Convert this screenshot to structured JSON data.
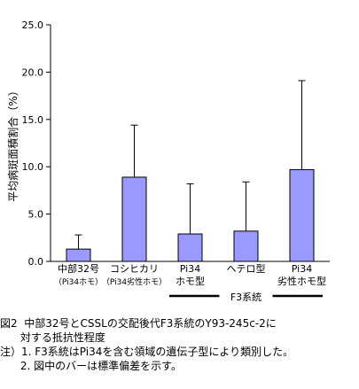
{
  "chart_data": {
    "type": "bar",
    "ylabel": "平均病斑面積割合（%）",
    "ylim": [
      0,
      25
    ],
    "yticks": [
      "0.0",
      "5.0",
      "10.0",
      "15.0",
      "20.0",
      "25.0"
    ],
    "bar_color": "#9999ff",
    "categories": [
      {
        "line1": "中部32号",
        "line2": "（Pi34ホモ）"
      },
      {
        "line1": "コシヒカリ",
        "line2": "（Pi34劣性ホモ）"
      },
      {
        "line1": "Pi34",
        "line2": "ホモ型"
      },
      {
        "line1": "ヘテロ型",
        "line2": ""
      },
      {
        "line1": "Pi34",
        "line2": "劣性ホモ型"
      }
    ],
    "values": [
      1.3,
      8.9,
      2.9,
      3.2,
      9.7
    ],
    "errors": [
      1.5,
      5.5,
      5.3,
      5.2,
      9.4
    ],
    "group_label": "F3系統",
    "group_range": [
      2,
      4
    ]
  },
  "caption": {
    "line1": "図2  中部32号とCSSLの交配後代F3系統のY93-245c-2に",
    "line2": "      対する抵抗性程度",
    "line3": "注）1. F3系統はPi34を含む領域の遺伝子型により類別した。",
    "line4": "      2. 図中のバーは標準偏差を示す。"
  }
}
